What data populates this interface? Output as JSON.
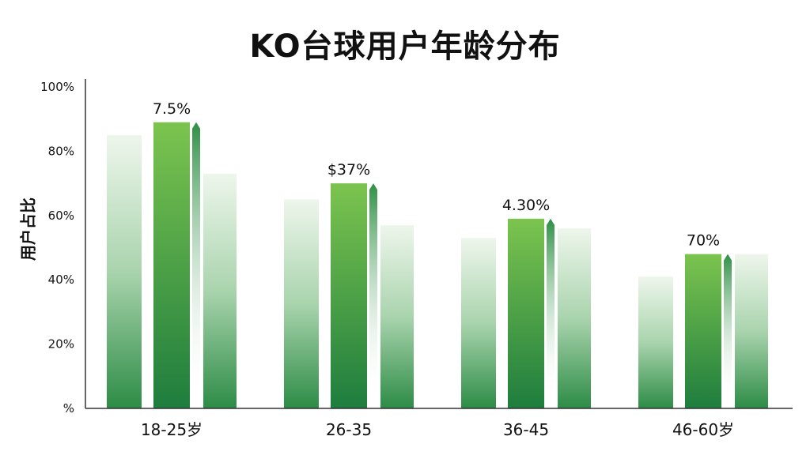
{
  "chart_data": {
    "type": "bar",
    "title": "KO台球用户年龄分布",
    "xlabel": "",
    "ylabel": "用户占比",
    "ylim": [
      0,
      100
    ],
    "y_ticks": [
      "%",
      "20%",
      "40%",
      "60%",
      "80%",
      "100%"
    ],
    "y_tick_values": [
      0,
      20,
      40,
      60,
      80,
      100
    ],
    "categories": [
      "18-25岁",
      "26-35",
      "36-45",
      "46-60岁"
    ],
    "series": [
      {
        "values": [
          85,
          65,
          53,
          41
        ]
      },
      {
        "values": [
          89,
          70,
          59,
          48
        ]
      },
      {
        "values": [
          73,
          57,
          56,
          48
        ]
      }
    ],
    "data_labels": [
      "7.5%",
      "$37%",
      "4.30%",
      "70%"
    ],
    "grid": false,
    "colors": {
      "highlight_top": "#7cc44f",
      "highlight_bottom": "#1e7d3e",
      "pale_top": "#eef6ec",
      "pale_bottom": "#2d8c46"
    }
  }
}
